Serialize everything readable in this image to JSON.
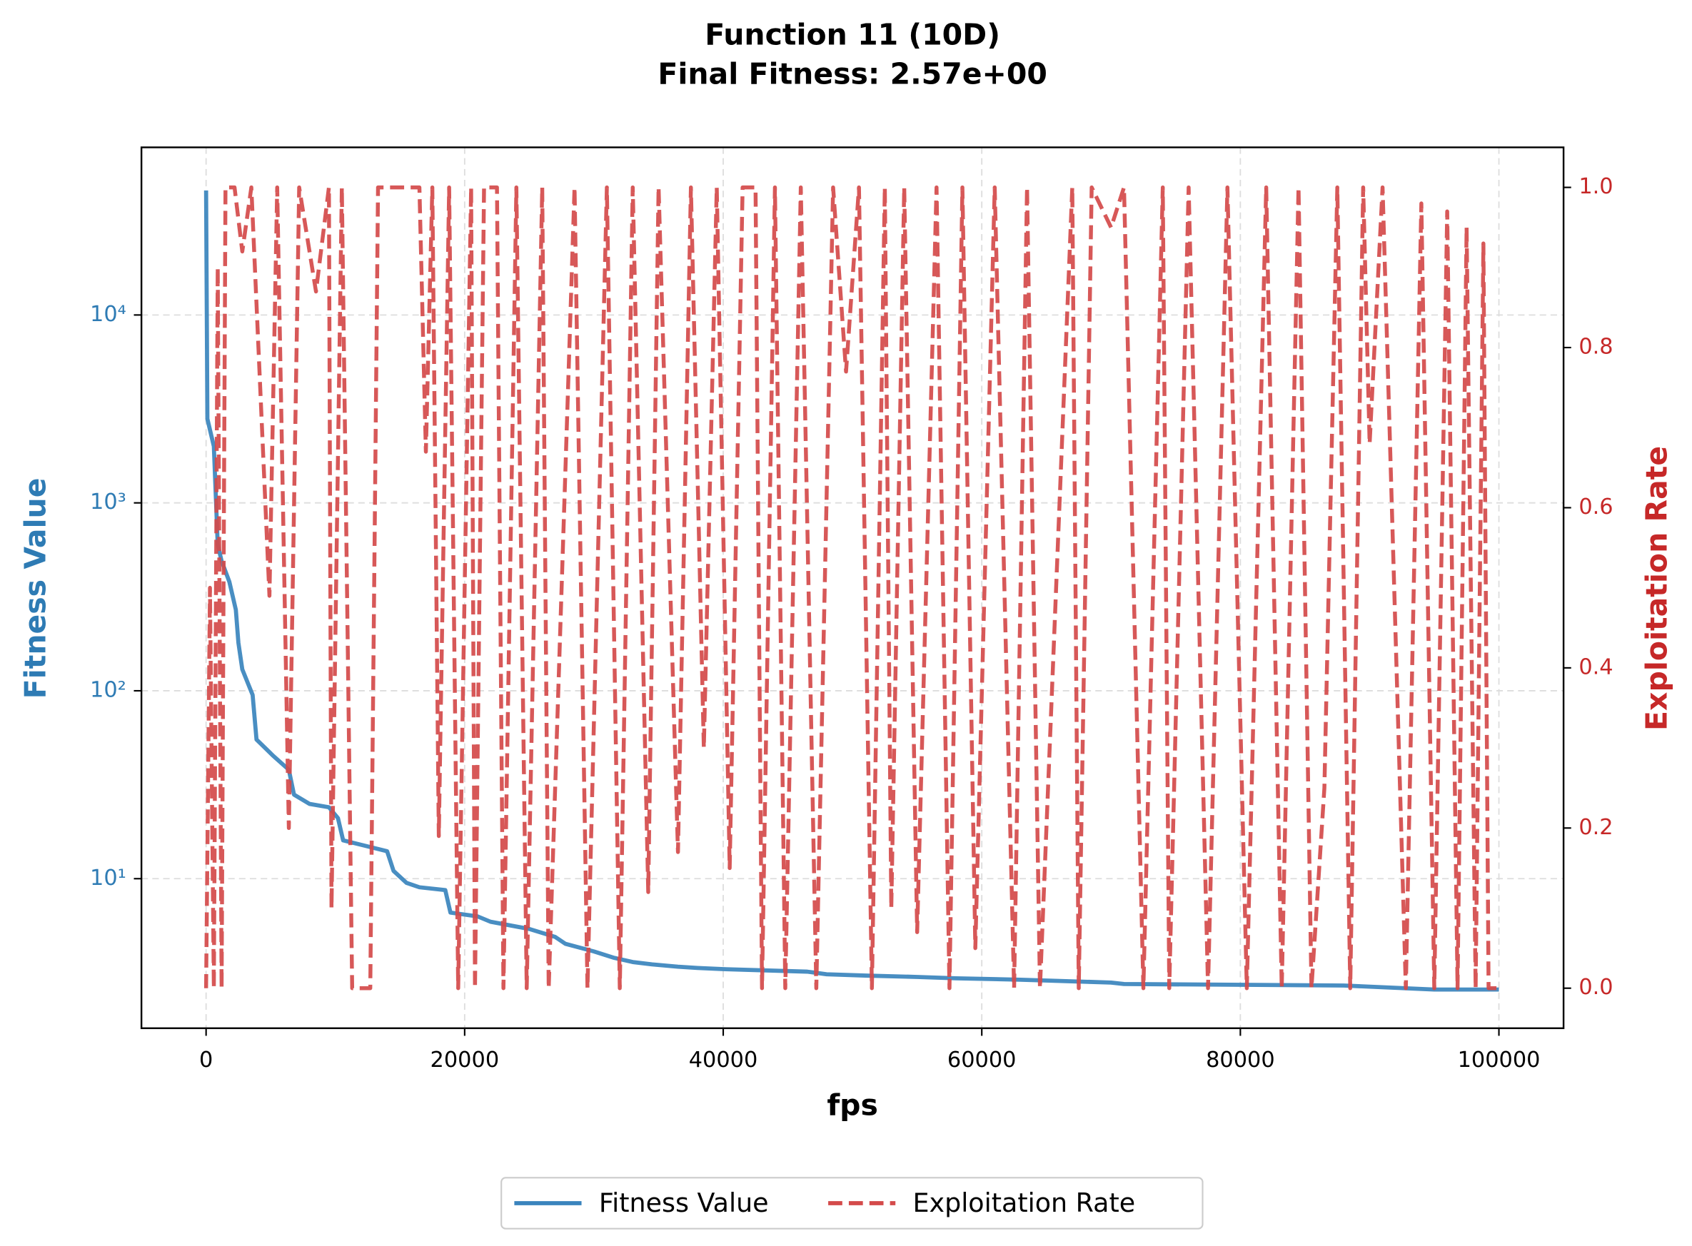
{
  "chart_data": {
    "type": "line",
    "title": "Function 11 (10D)",
    "subtitle": "Final Fitness: 2.57e+00",
    "x_label": "fps",
    "y_label": "Fitness Value",
    "y2_label": "Exploitation Rate",
    "xlim": [
      -5000,
      105000
    ],
    "xticks": [
      0,
      20000,
      40000,
      60000,
      80000,
      100000
    ],
    "y_scale": "log",
    "ylim": [
      1.6,
      78000
    ],
    "yticks": [
      {
        "value": 10,
        "label": "10¹"
      },
      {
        "value": 100,
        "label": "10²"
      },
      {
        "value": 1000,
        "label": "10³"
      },
      {
        "value": 10000,
        "label": "10⁴"
      }
    ],
    "y2lim": [
      -0.05,
      1.05
    ],
    "y2ticks": [
      {
        "value": 0,
        "label": "0.0"
      },
      0.2,
      0.4,
      0.6,
      0.8,
      {
        "value": 1,
        "label": "1.0"
      }
    ],
    "grid": true,
    "legend": "bottom",
    "series": [
      {
        "name": "Fitness Value",
        "color": "#3a84bd",
        "style": "solid",
        "x": [
          0,
          100,
          600,
          900,
          1200,
          1800,
          2300,
          2500,
          2800,
          3600,
          3900,
          5200,
          6400,
          6800,
          8000,
          9500,
          10200,
          10600,
          14000,
          14500,
          15500,
          16500,
          18500,
          18900,
          21000,
          22000,
          25000,
          27000,
          27800,
          30000,
          31500,
          33000,
          34500,
          36500,
          38000,
          40000,
          46500,
          48000,
          51000,
          55000,
          58000,
          63000,
          70000,
          71000,
          88000,
          95000,
          100000
        ],
        "values": [
          46000,
          2800,
          2000,
          600,
          490,
          380,
          270,
          180,
          130,
          95,
          55,
          45,
          38,
          28,
          25,
          24,
          21,
          16,
          14,
          11,
          9.5,
          9,
          8.7,
          6.6,
          6.3,
          5.9,
          5.4,
          4.9,
          4.5,
          4.1,
          3.8,
          3.6,
          3.5,
          3.4,
          3.35,
          3.3,
          3.2,
          3.1,
          3.05,
          3.0,
          2.95,
          2.9,
          2.8,
          2.75,
          2.7,
          2.57,
          2.57
        ]
      },
      {
        "name": "Exploitation Rate",
        "color": "#d44a4a",
        "style": "dashed",
        "axis": "y2",
        "x": [
          0,
          300,
          600,
          900,
          1200,
          1500,
          2200,
          2800,
          3500,
          4900,
          5500,
          6400,
          7200,
          8500,
          9500,
          9700,
          10500,
          11300,
          12700,
          13300,
          16500,
          17000,
          17500,
          18000,
          18800,
          19500,
          20500,
          20800,
          21500,
          22500,
          23000,
          24000,
          24800,
          26000,
          26500,
          28500,
          29500,
          31000,
          32000,
          33000,
          34200,
          35000,
          36500,
          37500,
          38500,
          39500,
          40500,
          41500,
          42500,
          43000,
          44000,
          44800,
          46000,
          47200,
          48500,
          49500,
          50500,
          51500,
          52500,
          53000,
          54000,
          55000,
          56500,
          57500,
          58500,
          59500,
          61000,
          62500,
          63500,
          64500,
          67000,
          67500,
          68500,
          70000,
          71000,
          72500,
          74000,
          74500,
          76000,
          77500,
          79000,
          80500,
          82000,
          83200,
          84500,
          85500,
          86500,
          87500,
          88500,
          89500,
          90000,
          91000,
          92800,
          94000,
          95000,
          96000,
          96800,
          97500,
          98200,
          98800,
          99200,
          100000
        ],
        "values": [
          0,
          0.5,
          0,
          0.9,
          0,
          1,
          1,
          0.92,
          1,
          0.49,
          1,
          0.2,
          1,
          0.87,
          1,
          0.1,
          1,
          0,
          0,
          1,
          1,
          0.67,
          1,
          0.19,
          1,
          0,
          1,
          0,
          1,
          1,
          0,
          1,
          0,
          1,
          0,
          1,
          0,
          1,
          0,
          1,
          0.12,
          1,
          0.17,
          1,
          0.3,
          1,
          0.15,
          1,
          1,
          0,
          1,
          0,
          1,
          0,
          1,
          0.77,
          1,
          0,
          1,
          0.1,
          1,
          0.07,
          1,
          0,
          1,
          0.05,
          1,
          0,
          1,
          0,
          1,
          0,
          1,
          0.95,
          1,
          0,
          1,
          0,
          1,
          0,
          1,
          0,
          1,
          0,
          1,
          0,
          0.25,
          1,
          0,
          1,
          0.68,
          1,
          0,
          0.98,
          0,
          0.97,
          0,
          0.95,
          0,
          0.93,
          0,
          0
        ]
      }
    ]
  }
}
